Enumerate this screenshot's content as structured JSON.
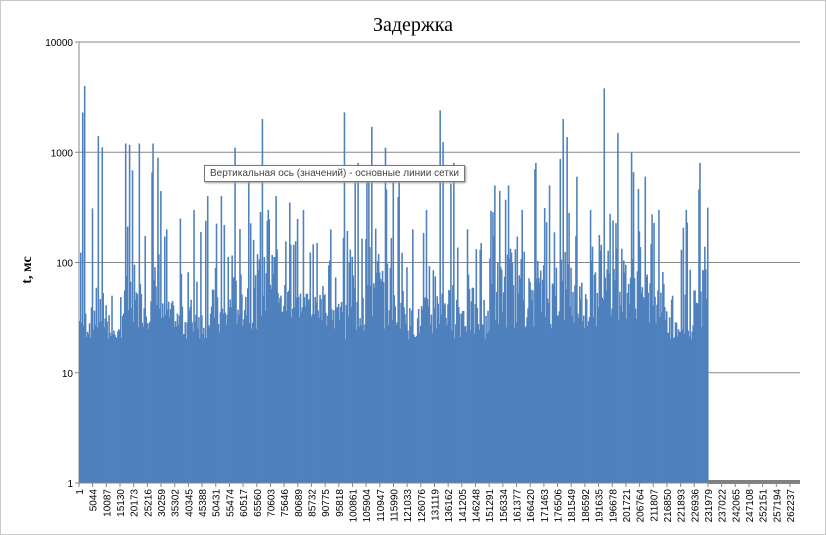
{
  "chart_data": {
    "type": "bar",
    "title": "Задержка",
    "ylabel": "t, мс",
    "xlabel": "",
    "y_scale": "log",
    "ylim": [
      1,
      10000
    ],
    "y_ticks": [
      "1",
      "10",
      "100",
      "1000",
      "10000"
    ],
    "grid": "horizontal major",
    "x_ticks": [
      "1",
      "5044",
      "10087",
      "15130",
      "20173",
      "25216",
      "30259",
      "35302",
      "40345",
      "45388",
      "50431",
      "55474",
      "60517",
      "65560",
      "70603",
      "75646",
      "80689",
      "85732",
      "90775",
      "95818",
      "100861",
      "105904",
      "110947",
      "115990",
      "121033",
      "126076",
      "131119",
      "136162",
      "141205",
      "146248",
      "151291",
      "156334",
      "161377",
      "166420",
      "171463",
      "176506",
      "181549",
      "186592",
      "191635",
      "196678",
      "201721",
      "206764",
      "211807",
      "216850",
      "221893",
      "226936",
      "231979",
      "237022",
      "242065",
      "247108",
      "252151",
      "257194",
      "262237"
    ],
    "bin_width": 5043,
    "bin_peak": [
      4000,
      1400,
      50,
      1200,
      1200,
      1200,
      200,
      250,
      300,
      400,
      400,
      1100,
      600,
      2000,
      400,
      350,
      300,
      150,
      200,
      2300,
      800,
      1700,
      1100,
      600,
      200,
      300,
      2400,
      800,
      200,
      150,
      500,
      500,
      300,
      800,
      500,
      2000,
      600,
      300,
      3800,
      1500,
      1000,
      600,
      300,
      50,
      300,
      800
    ],
    "bin_typical": [
      40,
      60,
      25,
      80,
      60,
      100,
      45,
      40,
      50,
      60,
      50,
      80,
      90,
      120,
      60,
      70,
      60,
      50,
      45,
      200,
      120,
      150,
      100,
      60,
      40,
      50,
      120,
      60,
      60,
      50,
      120,
      150,
      80,
      100,
      80,
      150,
      80,
      60,
      200,
      150,
      120,
      80,
      60,
      25,
      60,
      150
    ],
    "bin_floor": [
      20,
      20,
      20,
      20,
      25,
      25,
      25,
      20,
      20,
      20,
      20,
      25,
      25,
      30,
      30,
      30,
      30,
      30,
      25,
      20,
      20,
      25,
      25,
      25,
      20,
      20,
      20,
      20,
      20,
      20,
      25,
      25,
      25,
      25,
      25,
      25,
      25,
      25,
      30,
      30,
      30,
      25,
      25,
      20,
      20,
      25
    ],
    "color": "#4f81bd"
  },
  "tooltip": "Вертикальная ось (значений)  - основные линии сетки"
}
